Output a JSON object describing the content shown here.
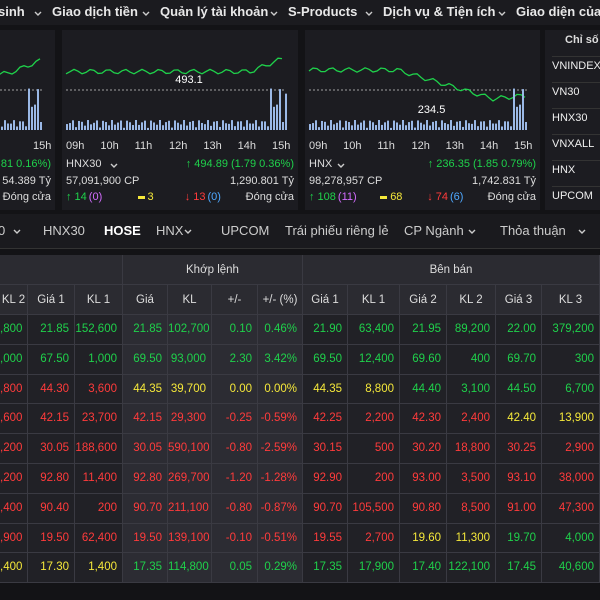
{
  "nav": [
    "sinh",
    "Giao dịch tiền",
    "Quản lý tài khoản",
    "S-Products",
    "Dịch vụ & Tiện ích",
    "Giao diện của N"
  ],
  "panels": [
    {
      "times": [
        "15h"
      ],
      "change": "81 0.16%)",
      "value": "54.389 Tỷ",
      "status": "Đóng cửa"
    },
    {
      "times": [
        "09h",
        "10h",
        "11h",
        "12h",
        "13h",
        "14h",
        "15h"
      ],
      "ref": "493.1",
      "name": "HNX30",
      "change": "↑ 494.89 (1.79 0.36%)",
      "volume": "57,091,900 CP",
      "value": "1,290.801 Tỷ",
      "up": "↑ 14",
      "ceil": "(0)",
      "same": "3",
      "down": "↓ 13",
      "floor": "(0)",
      "status": "Đóng cửa"
    },
    {
      "times": [
        "09h",
        "10h",
        "11h",
        "12h",
        "13h",
        "14h",
        "15h"
      ],
      "ref": "234.5",
      "name": "HNX",
      "change": "↑ 236.35 (1.85 0.79%)",
      "volume": "98,278,957 CP",
      "value": "1,742.831 Tỷ",
      "up": "↑ 108",
      "ceil": "(11)",
      "same": "68",
      "down": "↓ 74",
      "floor": "(6)",
      "status": "Đóng cửa"
    }
  ],
  "sidebar": {
    "title": "Chỉ số",
    "items": [
      "VNINDEX",
      "VN30",
      "HNX30",
      "VNXALL",
      "HNX",
      "UPCOM"
    ]
  },
  "tabs": [
    "0",
    "HNX30",
    "HOSE",
    "HNX",
    "UPCOM",
    "Trái phiếu riêng lẻ",
    "CP Ngành",
    "Thỏa thuận"
  ],
  "table": {
    "groups": [
      "Khớp lệnh",
      "Bên bán"
    ],
    "columns": [
      "KL 2",
      "Giá 1",
      "KL 1",
      "Giá",
      "KL",
      "+/-",
      "+/- (%)",
      "Giá 1",
      "KL 1",
      "Giá 2",
      "KL 2",
      "Giá 3",
      "KL 3"
    ],
    "rows": [
      {
        "cells": [
          ",800",
          "21.85",
          "152,600",
          "21.85",
          "102,700",
          "0.10",
          "0.46%",
          "21.90",
          "63,400",
          "21.95",
          "89,200",
          "22.00",
          "379,200"
        ],
        "tones": "ggggggggggggg"
      },
      {
        "cells": [
          ",000",
          "67.50",
          "1,000",
          "69.50",
          "93,000",
          "2.30",
          "3.42%",
          "69.50",
          "12,400",
          "69.60",
          "400",
          "69.70",
          "300"
        ],
        "tones": "ggggggggggggg"
      },
      {
        "cells": [
          ",800",
          "44.30",
          "3,600",
          "44.35",
          "39,700",
          "0.00",
          "0.00%",
          "44.35",
          "8,800",
          "44.40",
          "3,100",
          "44.50",
          "6,700"
        ],
        "tones": "rrryyyyyygggg"
      },
      {
        "cells": [
          ",600",
          "42.15",
          "23,700",
          "42.15",
          "29,300",
          "-0.25",
          "-0.59%",
          "42.25",
          "2,200",
          "42.30",
          "2,400",
          "42.40",
          "13,900"
        ],
        "tones": "rrrrrrrrrrryy"
      },
      {
        "cells": [
          ",200",
          "30.05",
          "188,600",
          "30.05",
          "590,100",
          "-0.80",
          "-2.59%",
          "30.15",
          "500",
          "30.20",
          "18,800",
          "30.25",
          "2,900"
        ],
        "tones": "rrrrrrrrrrrrr"
      },
      {
        "cells": [
          ",200",
          "92.80",
          "11,400",
          "92.80",
          "269,700",
          "-1.20",
          "-1.28%",
          "92.90",
          "200",
          "93.00",
          "3,500",
          "93.10",
          "38,000"
        ],
        "tones": "rrrrrrrrrrrrr"
      },
      {
        "cells": [
          ",400",
          "90.40",
          "200",
          "90.70",
          "211,100",
          "-0.80",
          "-0.87%",
          "90.70",
          "105,500",
          "90.80",
          "8,500",
          "91.00",
          "47,300"
        ],
        "tones": "rrrrrrrrrrrrr"
      },
      {
        "cells": [
          ",900",
          "19.50",
          "62,400",
          "19.50",
          "139,100",
          "-0.10",
          "-0.51%",
          "19.55",
          "2,700",
          "19.60",
          "11,300",
          "19.70",
          "4,000"
        ],
        "tones": "rrrrrrrrryygg"
      },
      {
        "cells": [
          ",400",
          "17.30",
          "1,400",
          "17.35",
          "114,800",
          "0.05",
          "0.29%",
          "17.35",
          "17,900",
          "17.40",
          "122,100",
          "17.45",
          "40,600"
        ],
        "tones": "yyygggggggggg"
      }
    ]
  }
}
